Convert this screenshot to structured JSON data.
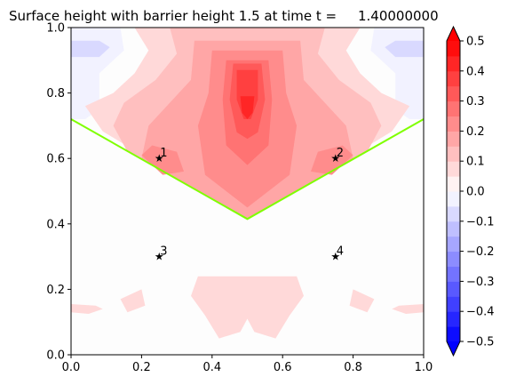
{
  "chart_data": {
    "type": "contour",
    "title": "Surface height with barrier height 1.5 at time t =     1.40000000",
    "xlabel": "",
    "ylabel": "",
    "xlim": [
      0,
      1
    ],
    "ylim": [
      0,
      1
    ],
    "x_ticks": [
      "0.0",
      "0.2",
      "0.4",
      "0.6",
      "0.8",
      "1.0"
    ],
    "y_ticks": [
      "0.0",
      "0.2",
      "0.4",
      "0.6",
      "0.8",
      "1.0"
    ],
    "barrier_line": {
      "color": "#7fff00",
      "points": [
        [
          0.0,
          0.72
        ],
        [
          0.5,
          0.415
        ],
        [
          1.0,
          0.72
        ]
      ]
    },
    "gauges": [
      {
        "label": "1",
        "x": 0.25,
        "y": 0.6
      },
      {
        "label": "2",
        "x": 0.75,
        "y": 0.6
      },
      {
        "label": "3",
        "x": 0.25,
        "y": 0.3
      },
      {
        "label": "4",
        "x": 0.75,
        "y": 0.3
      }
    ],
    "regions": [
      {
        "level": -0.05,
        "points": [
          [
            0.0,
            1.0
          ],
          [
            0.14,
            1.0
          ],
          [
            0.15,
            0.93
          ],
          [
            0.12,
            0.9
          ],
          [
            0.08,
            0.86
          ],
          [
            0.08,
            0.75
          ],
          [
            0.04,
            0.72
          ],
          [
            0.0,
            0.72
          ]
        ]
      },
      {
        "level": -0.05,
        "points": [
          [
            1.0,
            1.0
          ],
          [
            0.86,
            1.0
          ],
          [
            0.85,
            0.93
          ],
          [
            0.88,
            0.9
          ],
          [
            0.92,
            0.86
          ],
          [
            0.92,
            0.75
          ],
          [
            0.96,
            0.72
          ],
          [
            1.0,
            0.72
          ]
        ]
      },
      {
        "level": -0.1,
        "points": [
          [
            0.0,
            0.96
          ],
          [
            0.08,
            0.96
          ],
          [
            0.11,
            0.94
          ],
          [
            0.08,
            0.91
          ],
          [
            0.0,
            0.91
          ]
        ]
      },
      {
        "level": -0.1,
        "points": [
          [
            1.0,
            0.96
          ],
          [
            0.92,
            0.96
          ],
          [
            0.89,
            0.94
          ],
          [
            0.92,
            0.91
          ],
          [
            1.0,
            0.91
          ]
        ]
      },
      {
        "level": -0.05,
        "points": [
          [
            0.36,
            1.0
          ],
          [
            0.4,
            1.0
          ],
          [
            0.4,
            0.98
          ],
          [
            0.37,
            0.97
          ]
        ]
      },
      {
        "level": -0.05,
        "points": [
          [
            0.6,
            1.0
          ],
          [
            0.64,
            1.0
          ],
          [
            0.63,
            0.97
          ],
          [
            0.6,
            0.98
          ]
        ]
      },
      {
        "level": 0.05,
        "points": [
          [
            0.18,
            1.0
          ],
          [
            0.82,
            1.0
          ],
          [
            0.78,
            0.93
          ],
          [
            0.82,
            0.86
          ],
          [
            0.88,
            0.8
          ],
          [
            0.96,
            0.76
          ],
          [
            0.91,
            0.683
          ],
          [
            0.5,
            0.415
          ],
          [
            0.09,
            0.683
          ],
          [
            0.04,
            0.76
          ],
          [
            0.12,
            0.8
          ],
          [
            0.18,
            0.86
          ],
          [
            0.22,
            0.93
          ]
        ]
      },
      {
        "level": 0.1,
        "points": [
          [
            0.28,
            1.0
          ],
          [
            0.72,
            1.0
          ],
          [
            0.7,
            0.92
          ],
          [
            0.76,
            0.84
          ],
          [
            0.85,
            0.77
          ],
          [
            0.88,
            0.7
          ],
          [
            0.84,
            0.62
          ],
          [
            0.5,
            0.415
          ],
          [
            0.16,
            0.62
          ],
          [
            0.12,
            0.7
          ],
          [
            0.15,
            0.77
          ],
          [
            0.24,
            0.84
          ],
          [
            0.3,
            0.92
          ]
        ]
      },
      {
        "level": 0.15,
        "points": [
          [
            0.35,
            0.96
          ],
          [
            0.65,
            0.96
          ],
          [
            0.66,
            0.84
          ],
          [
            0.78,
            0.7
          ],
          [
            0.8,
            0.6
          ],
          [
            0.5,
            0.415
          ],
          [
            0.2,
            0.6
          ],
          [
            0.22,
            0.7
          ],
          [
            0.34,
            0.84
          ]
        ]
      },
      {
        "level": 0.2,
        "points": [
          [
            0.4,
            0.93
          ],
          [
            0.6,
            0.93
          ],
          [
            0.61,
            0.8
          ],
          [
            0.64,
            0.7
          ],
          [
            0.62,
            0.55
          ],
          [
            0.5,
            0.45
          ],
          [
            0.38,
            0.55
          ],
          [
            0.36,
            0.7
          ],
          [
            0.39,
            0.8
          ]
        ]
      },
      {
        "level": 0.2,
        "points": [
          [
            0.7,
            0.62
          ],
          [
            0.77,
            0.64
          ],
          [
            0.8,
            0.61
          ],
          [
            0.74,
            0.55
          ],
          [
            0.68,
            0.56
          ]
        ]
      },
      {
        "level": 0.2,
        "points": [
          [
            0.3,
            0.62
          ],
          [
            0.23,
            0.64
          ],
          [
            0.2,
            0.61
          ],
          [
            0.26,
            0.55
          ],
          [
            0.32,
            0.56
          ]
        ]
      },
      {
        "level": 0.25,
        "points": [
          [
            0.44,
            0.9
          ],
          [
            0.56,
            0.9
          ],
          [
            0.57,
            0.78
          ],
          [
            0.56,
            0.64
          ],
          [
            0.5,
            0.58
          ],
          [
            0.44,
            0.64
          ],
          [
            0.43,
            0.78
          ]
        ]
      },
      {
        "level": 0.3,
        "points": [
          [
            0.46,
            0.89
          ],
          [
            0.54,
            0.89
          ],
          [
            0.55,
            0.78
          ],
          [
            0.53,
            0.68
          ],
          [
            0.5,
            0.66
          ],
          [
            0.47,
            0.68
          ],
          [
            0.45,
            0.78
          ]
        ]
      },
      {
        "level": 0.35,
        "points": [
          [
            0.47,
            0.87
          ],
          [
            0.53,
            0.87
          ],
          [
            0.53,
            0.78
          ],
          [
            0.51,
            0.72
          ],
          [
            0.49,
            0.72
          ],
          [
            0.47,
            0.78
          ]
        ]
      },
      {
        "level": 0.4,
        "points": [
          [
            0.48,
            0.79
          ],
          [
            0.52,
            0.79
          ],
          [
            0.515,
            0.74
          ],
          [
            0.5,
            0.72
          ],
          [
            0.485,
            0.74
          ]
        ]
      },
      {
        "level": 0.05,
        "points": [
          [
            0.36,
            0.24
          ],
          [
            0.64,
            0.24
          ],
          [
            0.66,
            0.18
          ],
          [
            0.62,
            0.12
          ],
          [
            0.58,
            0.05
          ],
          [
            0.52,
            0.07
          ],
          [
            0.5,
            0.11
          ],
          [
            0.48,
            0.07
          ],
          [
            0.42,
            0.05
          ],
          [
            0.38,
            0.12
          ],
          [
            0.34,
            0.18
          ]
        ]
      },
      {
        "level": 0.05,
        "points": [
          [
            0.0,
            0.155
          ],
          [
            0.07,
            0.15
          ],
          [
            0.09,
            0.14
          ],
          [
            0.05,
            0.125
          ],
          [
            0.0,
            0.13
          ]
        ]
      },
      {
        "level": 0.05,
        "points": [
          [
            1.0,
            0.155
          ],
          [
            0.93,
            0.15
          ],
          [
            0.91,
            0.14
          ],
          [
            0.95,
            0.125
          ],
          [
            1.0,
            0.13
          ]
        ]
      },
      {
        "level": 0.05,
        "points": [
          [
            0.14,
            0.17
          ],
          [
            0.2,
            0.2
          ],
          [
            0.21,
            0.15
          ],
          [
            0.16,
            0.13
          ]
        ]
      },
      {
        "level": 0.05,
        "points": [
          [
            0.86,
            0.17
          ],
          [
            0.8,
            0.2
          ],
          [
            0.79,
            0.15
          ],
          [
            0.84,
            0.13
          ]
        ]
      }
    ],
    "colorbar": {
      "min": -0.5,
      "max": 0.5,
      "step": 0.05,
      "ticks": [
        "0.5",
        "0.4",
        "0.3",
        "0.2",
        "0.1",
        "0.0",
        "−0.1",
        "−0.2",
        "−0.3",
        "−0.4",
        "−0.5"
      ],
      "extend": "both",
      "colormap": "bwr"
    }
  }
}
